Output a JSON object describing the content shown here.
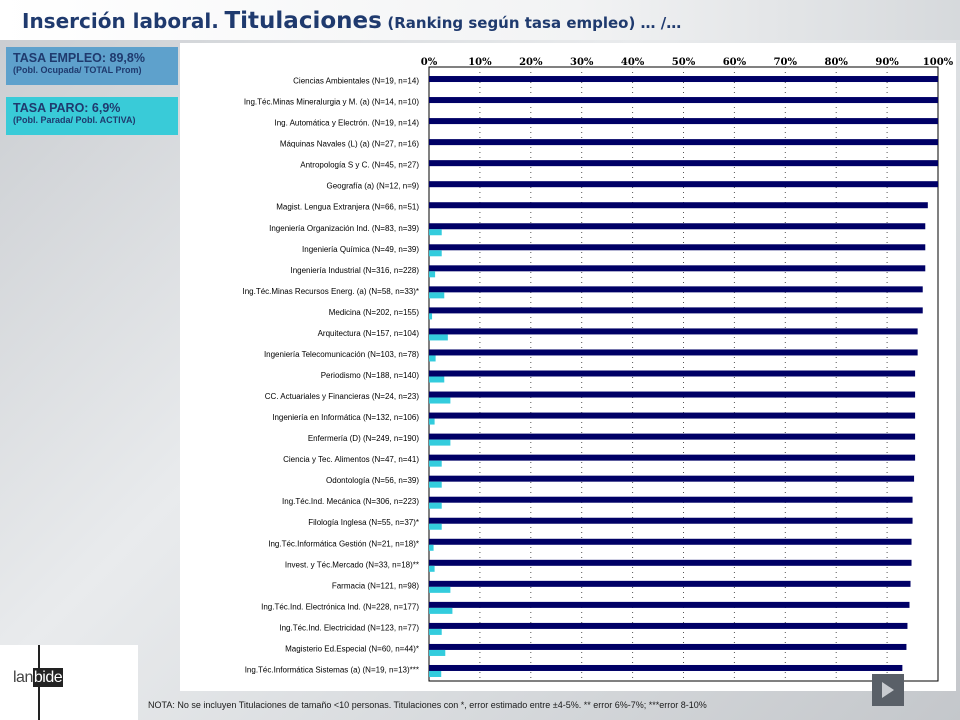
{
  "title": {
    "part1": "Inserción laboral.",
    "part2": "Titulaciones",
    "part3": "(Ranking según tasa empleo) … /…"
  },
  "tasa_empleo": {
    "main": "TASA EMPLEO: 89,8%",
    "sub": "(Pobl. Ocupada/ TOTAL Prom)"
  },
  "tasa_paro": {
    "main": "TASA PARO: 6,9%",
    "sub": "(Pobl. Parada/ Pobl. ACTIVA)"
  },
  "logo": {
    "lan": "lan",
    "bide": "bide"
  },
  "footnote": "NOTA: No se incluyen Titulaciones de tamaño <10 personas. Titulaciones con *, error estimado entre ±4-5%. ** error 6%-7%; ***error 8-10%",
  "colors": {
    "employment": "#000066",
    "unemployment": "#33ccdd",
    "title": "#1f3a6e"
  },
  "chart_data": {
    "type": "bar",
    "orientation": "horizontal",
    "xlim": [
      0,
      100
    ],
    "x_ticks": [
      "0%",
      "10%",
      "20%",
      "30%",
      "40%",
      "50%",
      "60%",
      "70%",
      "80%",
      "90%",
      "100%"
    ],
    "grid": "vertical dotted",
    "categories": [
      "Ciencias Ambientales (N=19, n=14)",
      "Ing.Téc.Minas Mineralurgia y M. (a) (N=14, n=10)",
      "Ing. Automática y Electrón. (N=19, n=14)",
      "Máquinas Navales (L) (a) (N=27, n=16)",
      "Antropología S y C. (N=45, n=27)",
      "Geografía (a) (N=12, n=9)",
      "Magist. Lengua Extranjera (N=66, n=51)",
      "Ingeniería Organización Ind. (N=83, n=39)",
      "Ingeniería Química (N=49, n=39)",
      "Ingeniería Industrial (N=316, n=228)",
      "Ing.Téc.Minas Recursos Energ. (a) (N=58, n=33)*",
      "Medicina (N=202, n=155)",
      "Arquitectura (N=157, n=104)",
      "Ingeniería Telecomunicación (N=103, n=78)",
      "Periodismo (N=188, n=140)",
      "CC. Actuariales y Financieras (N=24, n=23)",
      "Ingeniería en Informática (N=132, n=106)",
      "Enfermería (D) (N=249, n=190)",
      "Ciencia y Tec. Alimentos (N=47, n=41)",
      "Odontología (N=56, n=39)",
      "Ing.Téc.Ind. Mecánica (N=306, n=223)",
      "Filología Inglesa (N=55, n=37)*",
      "Ing.Téc.Informática Gestión (N=21, n=18)*",
      "Invest. y Téc.Mercado (N=33, n=18)**",
      "Farmacia (N=121, n=98)",
      "Ing.Téc.Ind. Electrónica Ind. (N=228, n=177)",
      "Ing.Téc.Ind. Electricidad (N=123, n=77)",
      "Magisterio Ed.Especial (N=60, n=44)*",
      "Ing.Téc.Informática Sistemas (a) (N=19, n=13)***"
    ],
    "series": [
      {
        "key": "empleo",
        "values": [
          100,
          100,
          100,
          100,
          100,
          100,
          98,
          97.5,
          97.5,
          97.5,
          97,
          97,
          96,
          96,
          95.5,
          95.5,
          95.5,
          95.5,
          95.5,
          95.3,
          95,
          95,
          94.8,
          94.8,
          94.6,
          94.4,
          94,
          93.8,
          93
        ]
      },
      {
        "key": "paro",
        "values": [
          0,
          0,
          0,
          0,
          0,
          0,
          0,
          2.5,
          2.5,
          1.2,
          3,
          0.6,
          3.7,
          1.3,
          3,
          4.2,
          1.1,
          4.2,
          2.5,
          2.5,
          2.5,
          2.5,
          0.9,
          1.1,
          4.2,
          4.6,
          2.5,
          3.2,
          2.4
        ]
      }
    ]
  }
}
